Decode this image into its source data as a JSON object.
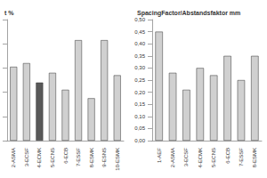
{
  "chart_data": [
    {
      "type": "bar",
      "title": "t %",
      "categories": [
        "2-ASMA",
        "3-ECSF",
        "4-ECMK",
        "5-ECNS",
        "6-ECB",
        "7-ESSF",
        "8-ESMK",
        "9-ESNS",
        "10-ESMK"
      ],
      "values": [
        6.1,
        6.4,
        4.8,
        5.6,
        4.2,
        8.3,
        3.5,
        8.3,
        5.4
      ],
      "colors": [
        "#d0d0d0",
        "#d0d0d0",
        "#595959",
        "#d0d0d0",
        "#d0d0d0",
        "#d0d0d0",
        "#d0d0d0",
        "#d0d0d0",
        "#d0d0d0"
      ],
      "ylim": [
        0,
        10
      ],
      "yticks": [
        0,
        2,
        4,
        6,
        8,
        10
      ],
      "grid": false,
      "tick_labels": "x"
    },
    {
      "type": "bar",
      "title": "SpacingFactor/Abstandsfaktor mm",
      "categories": [
        "1-AEF",
        "2-ASMA",
        "3-ECSF",
        "4-ECMK",
        "5-ECNS",
        "6-ECB",
        "7-ESSF",
        "8-ESMK"
      ],
      "values": [
        0.45,
        0.28,
        0.21,
        0.3,
        0.27,
        0.35,
        0.25,
        0.35
      ],
      "colors": [
        "#d0d0d0",
        "#d0d0d0",
        "#d0d0d0",
        "#d0d0d0",
        "#d0d0d0",
        "#d0d0d0",
        "#d0d0d0",
        "#d0d0d0"
      ],
      "ylim": [
        0,
        0.5
      ],
      "yticks": [
        {
          "value": 0,
          "label": "0,00"
        },
        {
          "value": 0.05,
          "label": "0,05"
        },
        {
          "value": 0.1,
          "label": "0,10"
        },
        {
          "value": 0.15,
          "label": "0,15"
        },
        {
          "value": 0.2,
          "label": "0,20"
        },
        {
          "value": 0.25,
          "label": "0,25"
        },
        {
          "value": 0.3,
          "label": "0,30"
        },
        {
          "value": 0.35,
          "label": "0,35"
        },
        {
          "value": 0.4,
          "label": "0,40"
        },
        {
          "value": 0.45,
          "label": "0,45"
        },
        {
          "value": 0.5,
          "label": "0,50"
        }
      ],
      "grid": false
    }
  ]
}
